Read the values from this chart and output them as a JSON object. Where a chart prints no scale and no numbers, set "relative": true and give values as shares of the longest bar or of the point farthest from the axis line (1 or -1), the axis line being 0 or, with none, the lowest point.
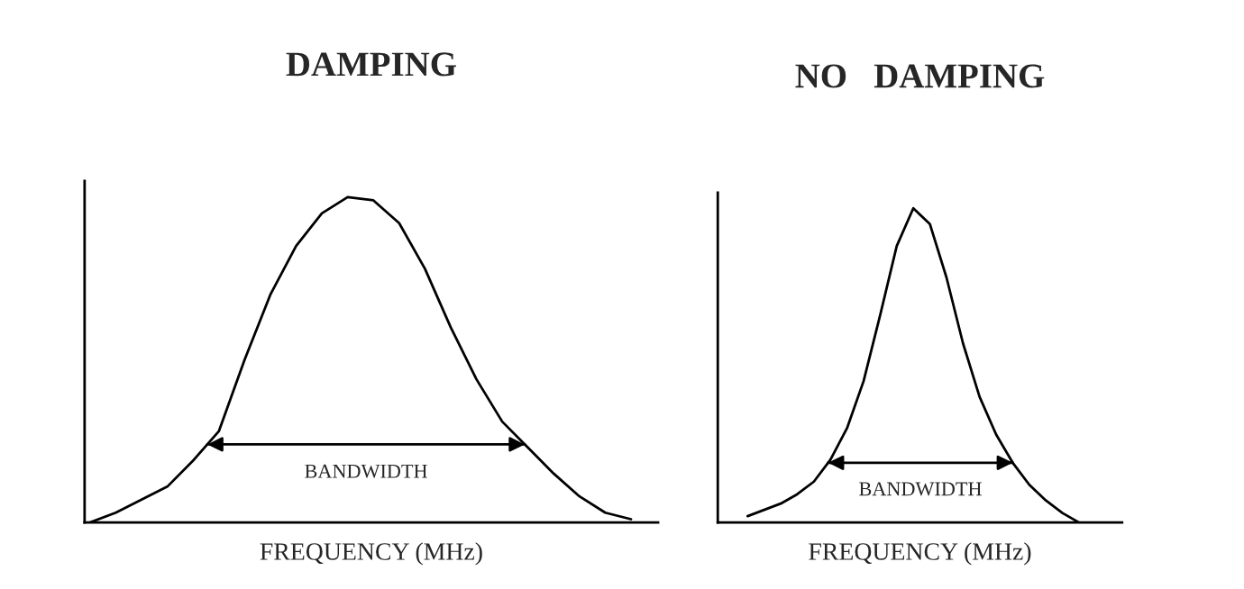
{
  "chart_data": [
    {
      "type": "line",
      "title": "DAMPING",
      "xlabel": "FREQUENCY (MHz)",
      "relative": true,
      "tick_labels": false,
      "legend": false,
      "categories": [
        null,
        null,
        null,
        null,
        null,
        null,
        null,
        null,
        null,
        null,
        null,
        null,
        null,
        null,
        null,
        null,
        null,
        null,
        null,
        null,
        null,
        null
      ],
      "series": [
        {
          "color": "#000000",
          "values": [
            0,
            0.03,
            0.07,
            0.11,
            0.19,
            0.28,
            0.5,
            0.7,
            0.85,
            0.95,
            1.0,
            0.99,
            0.92,
            0.78,
            0.6,
            0.44,
            0.31,
            0.23,
            0.15,
            0.08,
            0.03,
            0.01
          ]
        }
      ],
      "ref_lines": [
        {
          "axis": "y",
          "value": 0.24,
          "label": "BANDWIDTH"
        }
      ]
    },
    {
      "type": "line",
      "title": "NO   DAMPING",
      "xlabel": "FREQUENCY (MHz)",
      "relative": true,
      "tick_labels": false,
      "legend": false,
      "categories": [
        null,
        null,
        null,
        null,
        null,
        null,
        null,
        null,
        null,
        null,
        null,
        null,
        null,
        null,
        null,
        null,
        null,
        null,
        null,
        null,
        null
      ],
      "series": [
        {
          "color": "#000000",
          "values": [
            0.02,
            0.04,
            0.06,
            0.09,
            0.13,
            0.2,
            0.3,
            0.45,
            0.66,
            0.88,
            1.0,
            0.95,
            0.78,
            0.57,
            0.4,
            0.28,
            0.19,
            0.12,
            0.07,
            0.03,
            0
          ]
        }
      ],
      "ref_lines": [
        {
          "axis": "y",
          "value": 0.19,
          "label": "BANDWIDTH"
        }
      ]
    }
  ]
}
